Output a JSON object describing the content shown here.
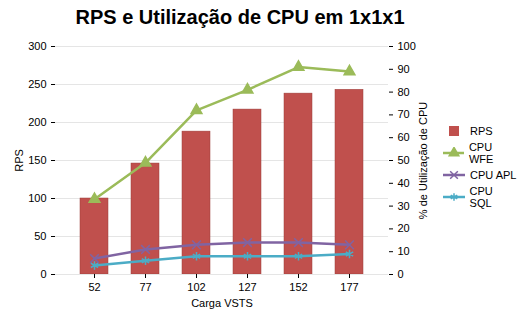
{
  "chart_data": {
    "type": "bar",
    "title": "RPS e Utilização de CPU em 1x1x1",
    "x_label": "Carga VSTS",
    "y_label": "RPS",
    "y2_label": "% de Utilização de CPU",
    "categories": [
      "52",
      "77",
      "102",
      "127",
      "152",
      "177"
    ],
    "series": [
      {
        "name": "RPS",
        "type": "bar",
        "color": "#c0504d",
        "values": [
          100,
          146,
          188,
          217,
          238,
          243
        ]
      },
      {
        "name": "CPU WFE",
        "type": "line",
        "axis": "y2",
        "marker": "triangle",
        "color": "#9bbb59",
        "values": [
          33,
          49,
          72,
          81,
          91,
          89
        ]
      },
      {
        "name": "CPU APL",
        "type": "line",
        "axis": "y2",
        "marker": "times",
        "color": "#8064a2",
        "values": [
          7,
          11,
          13,
          14,
          14,
          13
        ]
      },
      {
        "name": "CPU SQL",
        "type": "line",
        "axis": "y2",
        "marker": "asterisk",
        "color": "#4bacc6",
        "values": [
          4,
          6,
          8,
          8,
          8,
          9
        ]
      }
    ],
    "ylim": [
      0,
      300
    ],
    "yticks": [
      0,
      50,
      100,
      150,
      200,
      250,
      300
    ],
    "y2lim": [
      0,
      100
    ],
    "y2ticks": [
      0,
      10,
      20,
      30,
      40,
      50,
      60,
      70,
      80,
      90,
      100
    ],
    "grid": true,
    "legend": "right"
  }
}
